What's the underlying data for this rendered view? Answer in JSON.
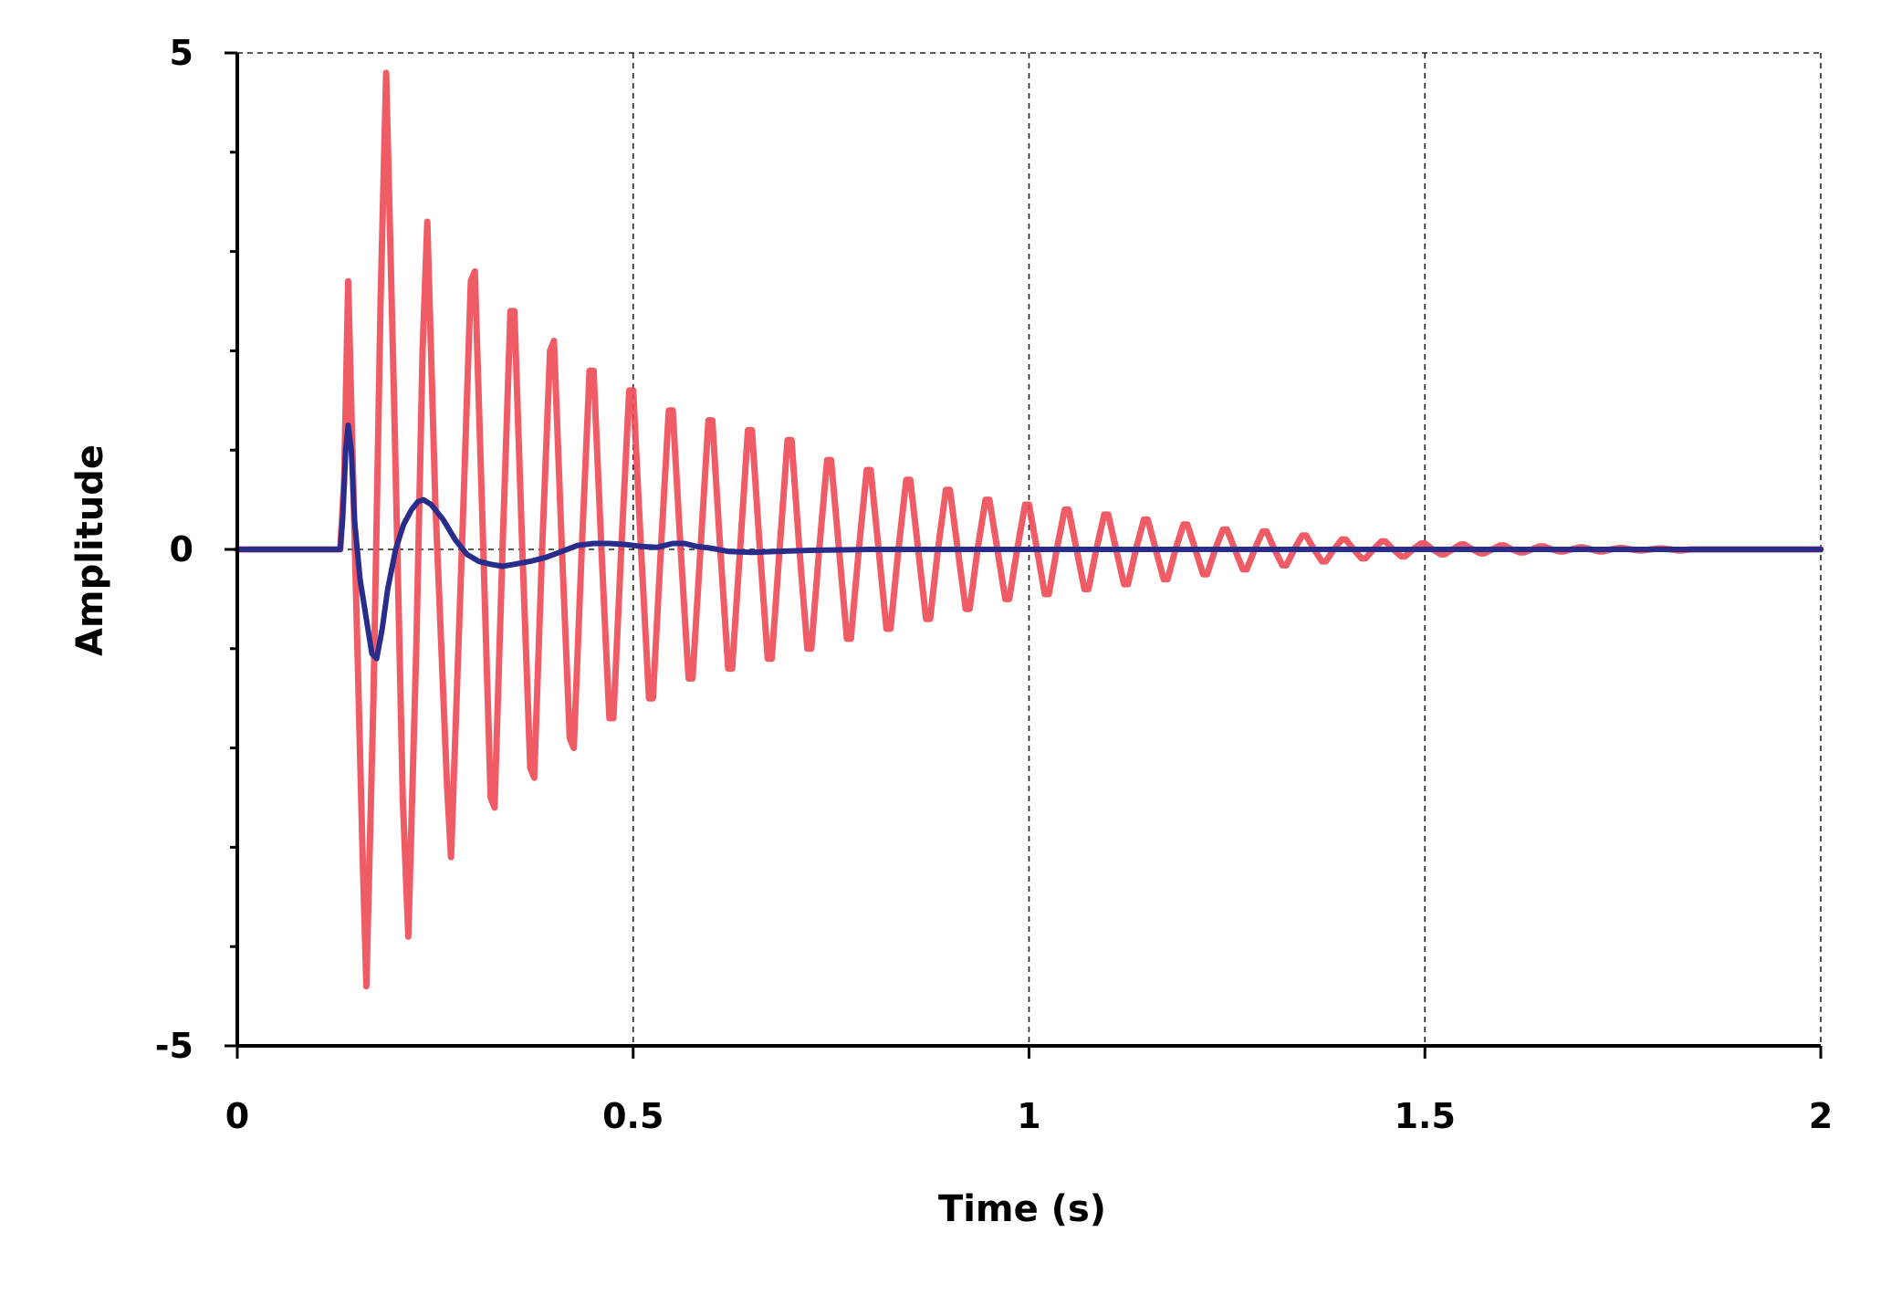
{
  "chart_data": {
    "type": "line",
    "xlabel": "Time (s)",
    "ylabel": "Amplitude",
    "xlim": [
      0,
      2
    ],
    "ylim": [
      -5,
      5
    ],
    "x_ticks": [
      0,
      0.5,
      1,
      1.5,
      2
    ],
    "x_tick_labels": [
      "0",
      "0.5",
      "1",
      "1.5",
      "2"
    ],
    "y_ticks": [
      -5,
      0,
      5
    ],
    "y_tick_labels": [
      "-5",
      "0",
      "5"
    ],
    "grid": true,
    "legend": "none",
    "series": [
      {
        "color": "#ee4a55",
        "description_of_shape": "damped oscillation",
        "points": [
          [
            0,
            0
          ],
          [
            0.13,
            0
          ],
          [
            0.135,
            0.7
          ],
          [
            0.14,
            2.7
          ],
          [
            0.147,
            0.5
          ],
          [
            0.158,
            -3.0
          ],
          [
            0.163,
            -4.4
          ],
          [
            0.172,
            -1.5
          ],
          [
            0.181,
            2.5
          ],
          [
            0.188,
            4.8
          ],
          [
            0.198,
            1.5
          ],
          [
            0.209,
            -2.5
          ],
          [
            0.216,
            -3.9
          ],
          [
            0.226,
            -1.0
          ],
          [
            0.234,
            2.0
          ],
          [
            0.24,
            3.3
          ],
          [
            0.25,
            0.5
          ],
          [
            0.265,
            -2.4
          ],
          [
            0.27,
            -3.1
          ],
          [
            0.285,
            0.3
          ],
          [
            0.295,
            2.7
          ],
          [
            0.3,
            2.8
          ],
          [
            0.31,
            0.2
          ],
          [
            0.32,
            -2.5
          ],
          [
            0.325,
            -2.6
          ],
          [
            0.335,
            0
          ],
          [
            0.345,
            2.4
          ],
          [
            0.35,
            2.4
          ],
          [
            0.36,
            0
          ],
          [
            0.37,
            -2.2
          ],
          [
            0.375,
            -2.3
          ],
          [
            0.385,
            0
          ],
          [
            0.395,
            2.0
          ],
          [
            0.4,
            2.1
          ],
          [
            0.41,
            0
          ],
          [
            0.42,
            -1.9
          ],
          [
            0.425,
            -2.0
          ],
          [
            0.435,
            0
          ],
          [
            0.445,
            1.8
          ],
          [
            0.45,
            1.8
          ],
          [
            0.46,
            0
          ],
          [
            0.47,
            -1.7
          ],
          [
            0.475,
            -1.7
          ],
          [
            0.485,
            0
          ],
          [
            0.495,
            1.6
          ],
          [
            0.5,
            1.6
          ],
          [
            0.51,
            0
          ],
          [
            0.52,
            -1.5
          ],
          [
            0.525,
            -1.5
          ],
          [
            0.535,
            0
          ],
          [
            0.545,
            1.4
          ],
          [
            0.55,
            1.4
          ],
          [
            0.56,
            0
          ],
          [
            0.57,
            -1.3
          ],
          [
            0.575,
            -1.3
          ],
          [
            0.585,
            0
          ],
          [
            0.595,
            1.3
          ],
          [
            0.6,
            1.3
          ],
          [
            0.61,
            0
          ],
          [
            0.62,
            -1.2
          ],
          [
            0.625,
            -1.2
          ],
          [
            0.635,
            0
          ],
          [
            0.645,
            1.2
          ],
          [
            0.65,
            1.2
          ],
          [
            0.66,
            0
          ],
          [
            0.67,
            -1.1
          ],
          [
            0.675,
            -1.1
          ],
          [
            0.685,
            0
          ],
          [
            0.695,
            1.1
          ],
          [
            0.7,
            1.1
          ],
          [
            0.71,
            0
          ],
          [
            0.72,
            -1.0
          ],
          [
            0.725,
            -1.0
          ],
          [
            0.735,
            0
          ],
          [
            0.745,
            0.9
          ],
          [
            0.75,
            0.9
          ],
          [
            0.76,
            0
          ],
          [
            0.77,
            -0.9
          ],
          [
            0.775,
            -0.9
          ],
          [
            0.785,
            0
          ],
          [
            0.795,
            0.8
          ],
          [
            0.8,
            0.8
          ],
          [
            0.81,
            0
          ],
          [
            0.82,
            -0.8
          ],
          [
            0.825,
            -0.8
          ],
          [
            0.835,
            0
          ],
          [
            0.845,
            0.7
          ],
          [
            0.85,
            0.7
          ],
          [
            0.86,
            0
          ],
          [
            0.87,
            -0.7
          ],
          [
            0.875,
            -0.7
          ],
          [
            0.885,
            0
          ],
          [
            0.895,
            0.6
          ],
          [
            0.9,
            0.6
          ],
          [
            0.91,
            0
          ],
          [
            0.92,
            -0.6
          ],
          [
            0.925,
            -0.6
          ],
          [
            0.935,
            0
          ],
          [
            0.945,
            0.5
          ],
          [
            0.95,
            0.5
          ],
          [
            0.96,
            0
          ],
          [
            0.97,
            -0.5
          ],
          [
            0.975,
            -0.5
          ],
          [
            0.985,
            0
          ],
          [
            0.995,
            0.45
          ],
          [
            1.0,
            0.45
          ],
          [
            1.01,
            0
          ],
          [
            1.02,
            -0.45
          ],
          [
            1.025,
            -0.45
          ],
          [
            1.035,
            0
          ],
          [
            1.045,
            0.4
          ],
          [
            1.05,
            0.4
          ],
          [
            1.06,
            0
          ],
          [
            1.07,
            -0.4
          ],
          [
            1.075,
            -0.4
          ],
          [
            1.085,
            0
          ],
          [
            1.095,
            0.35
          ],
          [
            1.1,
            0.35
          ],
          [
            1.11,
            0
          ],
          [
            1.12,
            -0.35
          ],
          [
            1.125,
            -0.35
          ],
          [
            1.135,
            0
          ],
          [
            1.145,
            0.3
          ],
          [
            1.15,
            0.3
          ],
          [
            1.16,
            0
          ],
          [
            1.17,
            -0.3
          ],
          [
            1.175,
            -0.3
          ],
          [
            1.185,
            0
          ],
          [
            1.195,
            0.25
          ],
          [
            1.2,
            0.25
          ],
          [
            1.21,
            0
          ],
          [
            1.22,
            -0.25
          ],
          [
            1.225,
            -0.25
          ],
          [
            1.235,
            0
          ],
          [
            1.245,
            0.2
          ],
          [
            1.25,
            0.2
          ],
          [
            1.26,
            0
          ],
          [
            1.27,
            -0.2
          ],
          [
            1.275,
            -0.2
          ],
          [
            1.285,
            0
          ],
          [
            1.295,
            0.18
          ],
          [
            1.3,
            0.18
          ],
          [
            1.31,
            0
          ],
          [
            1.32,
            -0.16
          ],
          [
            1.325,
            -0.16
          ],
          [
            1.335,
            0
          ],
          [
            1.345,
            0.14
          ],
          [
            1.35,
            0.14
          ],
          [
            1.36,
            0
          ],
          [
            1.37,
            -0.12
          ],
          [
            1.375,
            -0.12
          ],
          [
            1.385,
            0
          ],
          [
            1.395,
            0.1
          ],
          [
            1.4,
            0.1
          ],
          [
            1.41,
            0
          ],
          [
            1.42,
            -0.09
          ],
          [
            1.425,
            -0.09
          ],
          [
            1.435,
            0
          ],
          [
            1.445,
            0.08
          ],
          [
            1.45,
            0.08
          ],
          [
            1.46,
            0
          ],
          [
            1.47,
            -0.07
          ],
          [
            1.475,
            -0.07
          ],
          [
            1.485,
            0
          ],
          [
            1.495,
            0.06
          ],
          [
            1.5,
            0.06
          ],
          [
            1.51,
            0
          ],
          [
            1.52,
            -0.05
          ],
          [
            1.525,
            -0.05
          ],
          [
            1.535,
            0
          ],
          [
            1.545,
            0.05
          ],
          [
            1.55,
            0.05
          ],
          [
            1.56,
            0
          ],
          [
            1.57,
            -0.04
          ],
          [
            1.575,
            -0.04
          ],
          [
            1.585,
            0
          ],
          [
            1.595,
            0.04
          ],
          [
            1.6,
            0.04
          ],
          [
            1.61,
            0
          ],
          [
            1.62,
            -0.03
          ],
          [
            1.625,
            -0.03
          ],
          [
            1.635,
            0
          ],
          [
            1.645,
            0.03
          ],
          [
            1.65,
            0.03
          ],
          [
            1.66,
            0
          ],
          [
            1.67,
            -0.02
          ],
          [
            1.675,
            -0.02
          ],
          [
            1.685,
            0
          ],
          [
            1.695,
            0.02
          ],
          [
            1.7,
            0.02
          ],
          [
            1.71,
            0
          ],
          [
            1.72,
            -0.02
          ],
          [
            1.725,
            -0.02
          ],
          [
            1.735,
            0
          ],
          [
            1.745,
            0.015
          ],
          [
            1.75,
            0.015
          ],
          [
            1.76,
            0
          ],
          [
            1.77,
            -0.01
          ],
          [
            1.775,
            -0.01
          ],
          [
            1.785,
            0
          ],
          [
            1.795,
            0.01
          ],
          [
            1.8,
            0.01
          ],
          [
            1.81,
            0
          ],
          [
            1.82,
            -0.01
          ],
          [
            1.825,
            -0.01
          ],
          [
            1.835,
            0
          ],
          [
            2.0,
            0
          ]
        ]
      },
      {
        "color": "#2a2c8c",
        "points": [
          [
            0,
            0
          ],
          [
            0.13,
            0
          ],
          [
            0.133,
            0.3
          ],
          [
            0.137,
            1.0
          ],
          [
            0.14,
            1.25
          ],
          [
            0.144,
            1.0
          ],
          [
            0.148,
            0.3
          ],
          [
            0.155,
            -0.3
          ],
          [
            0.165,
            -0.8
          ],
          [
            0.17,
            -1.05
          ],
          [
            0.176,
            -1.1
          ],
          [
            0.183,
            -0.8
          ],
          [
            0.19,
            -0.4
          ],
          [
            0.2,
            0
          ],
          [
            0.21,
            0.25
          ],
          [
            0.22,
            0.4
          ],
          [
            0.228,
            0.48
          ],
          [
            0.235,
            0.5
          ],
          [
            0.245,
            0.45
          ],
          [
            0.26,
            0.3
          ],
          [
            0.275,
            0.1
          ],
          [
            0.29,
            -0.05
          ],
          [
            0.305,
            -0.12
          ],
          [
            0.32,
            -0.15
          ],
          [
            0.335,
            -0.17
          ],
          [
            0.35,
            -0.15
          ],
          [
            0.37,
            -0.12
          ],
          [
            0.39,
            -0.08
          ],
          [
            0.41,
            -0.02
          ],
          [
            0.43,
            0.04
          ],
          [
            0.45,
            0.06
          ],
          [
            0.47,
            0.06
          ],
          [
            0.49,
            0.05
          ],
          [
            0.51,
            0.03
          ],
          [
            0.53,
            0.02
          ],
          [
            0.55,
            0.06
          ],
          [
            0.565,
            0.06
          ],
          [
            0.58,
            0.03
          ],
          [
            0.6,
            0.01
          ],
          [
            0.62,
            -0.02
          ],
          [
            0.65,
            -0.03
          ],
          [
            0.68,
            -0.02
          ],
          [
            0.72,
            -0.01
          ],
          [
            0.8,
            0
          ],
          [
            1.0,
            0
          ],
          [
            1.5,
            0
          ],
          [
            2.0,
            0
          ]
        ]
      }
    ]
  }
}
